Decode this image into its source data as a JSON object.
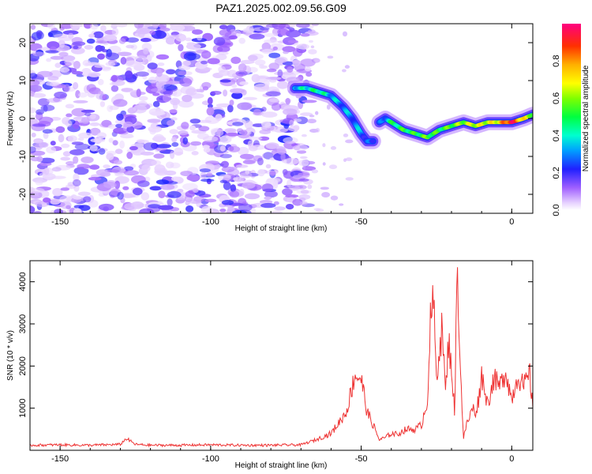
{
  "chart_data": [
    {
      "type": "heatmap",
      "title": "PAZ1.2025.002.09.56.G09",
      "xlabel": "Height of straight line (km)",
      "ylabel": "Frequency (Hz)",
      "xlim": [
        -160,
        7
      ],
      "ylim": [
        -25,
        25
      ],
      "x_ticks": [
        -150,
        -100,
        -50,
        0
      ],
      "x_tick_labels": [
        "-150",
        "-100",
        "-50",
        "0"
      ],
      "y_ticks": [
        20,
        10,
        0,
        -10,
        -20
      ],
      "y_tick_labels": [
        "20",
        "10",
        "0",
        "-10",
        "-20"
      ],
      "noise_region_x": [
        -160,
        -67
      ],
      "signal_ridge": {
        "x": [
          -72,
          -68,
          -64,
          -60,
          -56,
          -53,
          -50,
          -48,
          -46,
          -44,
          -42,
          -40,
          -36,
          -32,
          -28,
          -24,
          -20,
          -16,
          -12,
          -8,
          -4,
          0,
          4,
          7
        ],
        "y": [
          8,
          8,
          7,
          6,
          3,
          0,
          -4,
          -6,
          -6,
          -1,
          0,
          -1,
          -3,
          -4,
          -5,
          -3,
          -2,
          -1,
          -2,
          -1,
          -1,
          -1,
          0,
          1
        ],
        "amplitude": [
          0.35,
          0.4,
          0.45,
          0.35,
          0.3,
          0.3,
          0.3,
          0.25,
          0.2,
          0.2,
          0.3,
          0.45,
          0.5,
          0.5,
          0.55,
          0.5,
          0.55,
          0.6,
          0.65,
          0.65,
          0.7,
          0.95,
          0.7,
          0.6
        ]
      },
      "colorbar": {
        "label": "Normalized spectral amplitude",
        "range": [
          0,
          1
        ],
        "ticks": [
          0.0,
          0.2,
          0.4,
          0.6,
          0.8
        ],
        "tick_labels": [
          "0.0",
          "0.2",
          "0.4",
          "0.6",
          "0.8"
        ]
      },
      "grid": false
    },
    {
      "type": "line",
      "xlabel": "Height of straight line (km)",
      "ylabel": "SNR (10 * v/v)",
      "xlim": [
        -160,
        7
      ],
      "ylim": [
        0,
        4500
      ],
      "x_ticks": [
        -150,
        -100,
        -50,
        0
      ],
      "x_tick_labels": [
        "-150",
        "-100",
        "-50",
        "0"
      ],
      "y_ticks": [
        1000,
        2000,
        3000,
        4000
      ],
      "y_tick_labels": [
        "1000",
        "2000",
        "3000",
        "4000"
      ],
      "color": "#ee3333",
      "series": [
        {
          "x": [
            -160,
            -150,
            -140,
            -130,
            -128,
            -125,
            -120,
            -110,
            -100,
            -90,
            -80,
            -70,
            -65,
            -60,
            -57,
            -55,
            -52,
            -50,
            -48,
            -46,
            -44,
            -42,
            -40,
            -38,
            -35,
            -32,
            -30,
            -28,
            -27,
            -26,
            -25,
            -24,
            -23,
            -22,
            -21,
            -20,
            -19,
            -18,
            -17,
            -16,
            -15,
            -14,
            -13,
            -12,
            -11,
            -10,
            -8,
            -6,
            -4,
            -2,
            0,
            2,
            4,
            6,
            7
          ],
          "y": [
            120,
            130,
            120,
            140,
            280,
            140,
            120,
            120,
            130,
            120,
            120,
            130,
            250,
            400,
            700,
            900,
            1800,
            1700,
            900,
            600,
            250,
            300,
            400,
            380,
            500,
            500,
            600,
            1200,
            3000,
            3550,
            1700,
            2500,
            2900,
            1300,
            2600,
            2000,
            900,
            4450,
            1800,
            300,
            600,
            800,
            1000,
            900,
            1200,
            1800,
            1100,
            1700,
            1500,
            1900,
            1200,
            1800,
            1500,
            1800,
            1000
          ]
        }
      ],
      "grid": false
    }
  ]
}
